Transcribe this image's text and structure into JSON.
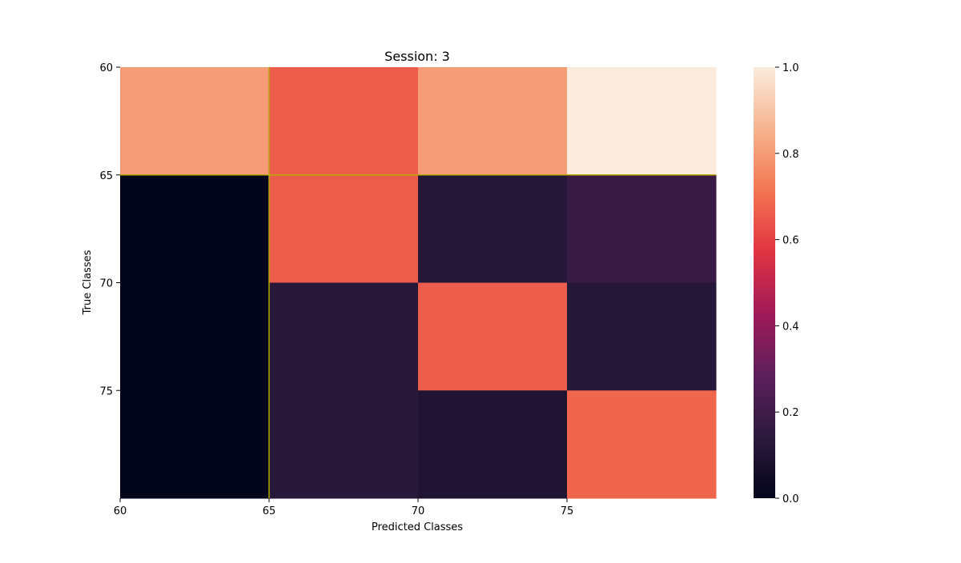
{
  "chart_data": {
    "type": "heatmap",
    "title": "Session: 3",
    "xlabel": "Predicted Classes",
    "ylabel": "True Classes",
    "x_ticks": [
      "60",
      "65",
      "70",
      "75"
    ],
    "y_ticks": [
      "60",
      "65",
      "70",
      "75"
    ],
    "rows": 4,
    "cols": 4,
    "values": [
      [
        0.8,
        0.66,
        0.8,
        1.0
      ],
      [
        0.0,
        0.66,
        0.12,
        0.18
      ],
      [
        0.0,
        0.13,
        0.66,
        0.12
      ],
      [
        0.0,
        0.13,
        0.1,
        0.68
      ]
    ],
    "colorbar": {
      "vmin": 0,
      "vmax": 1,
      "ticks": [
        "0.0",
        "0.2",
        "0.4",
        "0.6",
        "0.8",
        "1.0"
      ]
    },
    "grid_lines_color": "#b8a800",
    "colormap": "rocket",
    "colormap_stops": [
      "#03051a",
      "#2c1a3d",
      "#5c1f5c",
      "#a01a58",
      "#e13342",
      "#f37651",
      "#f6b48f",
      "#faebdd"
    ]
  }
}
